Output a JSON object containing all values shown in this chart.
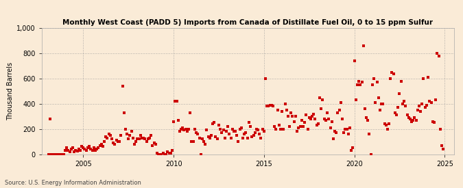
{
  "title": "Monthly West Coast (PADD 5) Imports from Canada of Distillate Fuel Oil, 0 to 15 ppm Sulfur",
  "ylabel": "Thousand Barrels",
  "source": "Source: U.S. Energy Information Administration",
  "background_color": "#faebd7",
  "marker_color": "#cc0000",
  "grid_color": "#999999",
  "xlim_start": 2002.7,
  "xlim_end": 2025.5,
  "ylim": [
    0,
    1000
  ],
  "yticks": [
    0,
    200,
    400,
    600,
    800,
    1000
  ],
  "ytick_labels": [
    "0",
    "200",
    "400",
    "600",
    "800",
    "1,000"
  ],
  "xticks": [
    2005,
    2010,
    2015,
    2020,
    2025
  ],
  "data_x": [
    2003.08,
    2003.17,
    2003.25,
    2003.33,
    2003.42,
    2003.5,
    2003.58,
    2003.67,
    2003.75,
    2003.83,
    2003.92,
    2004.0,
    2004.08,
    2004.17,
    2004.25,
    2004.33,
    2004.42,
    2004.5,
    2004.58,
    2004.67,
    2004.75,
    2004.83,
    2004.92,
    2005.0,
    2005.08,
    2005.17,
    2005.25,
    2005.33,
    2005.42,
    2005.5,
    2005.58,
    2005.67,
    2005.75,
    2005.83,
    2005.92,
    2006.0,
    2006.08,
    2006.17,
    2006.25,
    2006.33,
    2006.42,
    2006.5,
    2006.58,
    2006.67,
    2006.75,
    2006.83,
    2006.92,
    2007.0,
    2007.08,
    2007.17,
    2007.25,
    2007.33,
    2007.42,
    2007.5,
    2007.58,
    2007.67,
    2007.75,
    2007.83,
    2007.92,
    2008.0,
    2008.08,
    2008.17,
    2008.25,
    2008.33,
    2008.42,
    2008.5,
    2008.58,
    2008.67,
    2008.75,
    2008.83,
    2008.92,
    2009.0,
    2009.08,
    2009.17,
    2009.25,
    2009.33,
    2009.42,
    2009.5,
    2009.58,
    2009.67,
    2009.75,
    2009.83,
    2009.92,
    2010.0,
    2010.08,
    2010.17,
    2010.25,
    2010.33,
    2010.42,
    2010.5,
    2010.58,
    2010.67,
    2010.75,
    2010.83,
    2010.92,
    2011.0,
    2011.08,
    2011.17,
    2011.25,
    2011.33,
    2011.42,
    2011.5,
    2011.58,
    2011.67,
    2011.75,
    2011.83,
    2011.92,
    2012.0,
    2012.08,
    2012.17,
    2012.25,
    2012.33,
    2012.42,
    2012.5,
    2012.58,
    2012.67,
    2012.75,
    2012.83,
    2012.92,
    2013.0,
    2013.08,
    2013.17,
    2013.25,
    2013.33,
    2013.42,
    2013.5,
    2013.58,
    2013.67,
    2013.75,
    2013.83,
    2013.92,
    2014.0,
    2014.08,
    2014.17,
    2014.25,
    2014.33,
    2014.42,
    2014.5,
    2014.58,
    2014.67,
    2014.75,
    2014.83,
    2014.92,
    2015.0,
    2015.08,
    2015.17,
    2015.25,
    2015.33,
    2015.42,
    2015.5,
    2015.58,
    2015.67,
    2015.75,
    2015.83,
    2015.92,
    2016.0,
    2016.08,
    2016.17,
    2016.25,
    2016.33,
    2016.42,
    2016.5,
    2016.58,
    2016.67,
    2016.75,
    2016.83,
    2016.92,
    2017.0,
    2017.08,
    2017.17,
    2017.25,
    2017.33,
    2017.42,
    2017.5,
    2017.58,
    2017.67,
    2017.75,
    2017.83,
    2017.92,
    2018.0,
    2018.08,
    2018.17,
    2018.25,
    2018.33,
    2018.42,
    2018.5,
    2018.58,
    2018.67,
    2018.75,
    2018.83,
    2018.92,
    2019.0,
    2019.08,
    2019.17,
    2019.25,
    2019.33,
    2019.42,
    2019.5,
    2019.58,
    2019.67,
    2019.75,
    2019.83,
    2019.92,
    2020.0,
    2020.08,
    2020.17,
    2020.25,
    2020.33,
    2020.42,
    2020.5,
    2020.58,
    2020.67,
    2020.75,
    2020.83,
    2020.92,
    2021.0,
    2021.08,
    2021.17,
    2021.25,
    2021.33,
    2021.42,
    2021.5,
    2021.58,
    2021.67,
    2021.75,
    2021.83,
    2021.92,
    2022.0,
    2022.08,
    2022.17,
    2022.25,
    2022.33,
    2022.42,
    2022.5,
    2022.58,
    2022.67,
    2022.75,
    2022.83,
    2022.92,
    2023.0,
    2023.08,
    2023.17,
    2023.25,
    2023.33,
    2023.42,
    2023.5,
    2023.58,
    2023.67,
    2023.75,
    2023.83,
    2023.92,
    2024.0,
    2024.08,
    2024.17,
    2024.25,
    2024.33,
    2024.42,
    2024.5,
    2024.58,
    2024.67,
    2024.75,
    2024.83,
    2024.92
  ],
  "data_y": [
    0,
    280,
    0,
    0,
    0,
    0,
    0,
    0,
    0,
    0,
    0,
    30,
    50,
    30,
    20,
    40,
    50,
    20,
    30,
    25,
    40,
    30,
    60,
    50,
    40,
    30,
    50,
    60,
    40,
    30,
    50,
    30,
    40,
    50,
    70,
    80,
    60,
    100,
    140,
    130,
    160,
    150,
    120,
    90,
    80,
    110,
    100,
    100,
    150,
    540,
    330,
    200,
    160,
    120,
    150,
    180,
    130,
    80,
    100,
    120,
    120,
    150,
    130,
    130,
    120,
    100,
    120,
    130,
    150,
    70,
    90,
    80,
    10,
    0,
    0,
    0,
    10,
    0,
    0,
    20,
    10,
    10,
    30,
    260,
    420,
    420,
    270,
    180,
    200,
    210,
    190,
    200,
    180,
    200,
    330,
    100,
    100,
    200,
    170,
    160,
    130,
    0,
    120,
    100,
    80,
    190,
    140,
    130,
    150,
    240,
    250,
    140,
    120,
    230,
    200,
    170,
    190,
    130,
    180,
    220,
    160,
    130,
    200,
    180,
    180,
    150,
    100,
    200,
    210,
    130,
    160,
    170,
    130,
    250,
    220,
    140,
    150,
    170,
    200,
    190,
    160,
    130,
    200,
    180,
    600,
    380,
    380,
    390,
    390,
    380,
    220,
    200,
    350,
    230,
    200,
    340,
    200,
    400,
    350,
    300,
    220,
    330,
    300,
    260,
    300,
    180,
    210,
    220,
    270,
    220,
    250,
    310,
    200,
    290,
    280,
    300,
    320,
    280,
    230,
    240,
    450,
    360,
    430,
    280,
    270,
    330,
    280,
    210,
    260,
    120,
    180,
    170,
    330,
    350,
    410,
    280,
    170,
    200,
    200,
    160,
    210,
    30,
    50,
    740,
    430,
    550,
    580,
    550,
    570,
    860,
    360,
    290,
    270,
    160,
    0,
    550,
    600,
    410,
    570,
    450,
    350,
    400,
    400,
    240,
    230,
    200,
    240,
    600,
    650,
    640,
    330,
    310,
    370,
    480,
    580,
    400,
    420,
    380,
    310,
    290,
    280,
    260,
    270,
    290,
    270,
    350,
    380,
    340,
    400,
    600,
    370,
    390,
    610,
    420,
    410,
    260,
    250,
    430,
    800,
    780,
    200,
    70,
    40
  ]
}
